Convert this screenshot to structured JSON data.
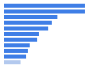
{
  "chart_data": {
    "type": "bar",
    "orientation": "horizontal",
    "categories": [
      null,
      null,
      null,
      null,
      null,
      null,
      null,
      null,
      null,
      null,
      null
    ],
    "values": [
      88,
      88,
      58,
      52,
      48,
      38,
      36,
      28,
      26,
      24,
      18
    ],
    "colors": [
      "#3f7ee6",
      "#3f7ee6",
      "#3f7ee6",
      "#3f7ee6",
      "#3f7ee6",
      "#3f7ee6",
      "#3f7ee6",
      "#3f7ee6",
      "#3f7ee6",
      "#3f7ee6",
      "#b3c9ee"
    ],
    "xlim": [
      0,
      100
    ],
    "tick_labels": false,
    "grid": false
  }
}
